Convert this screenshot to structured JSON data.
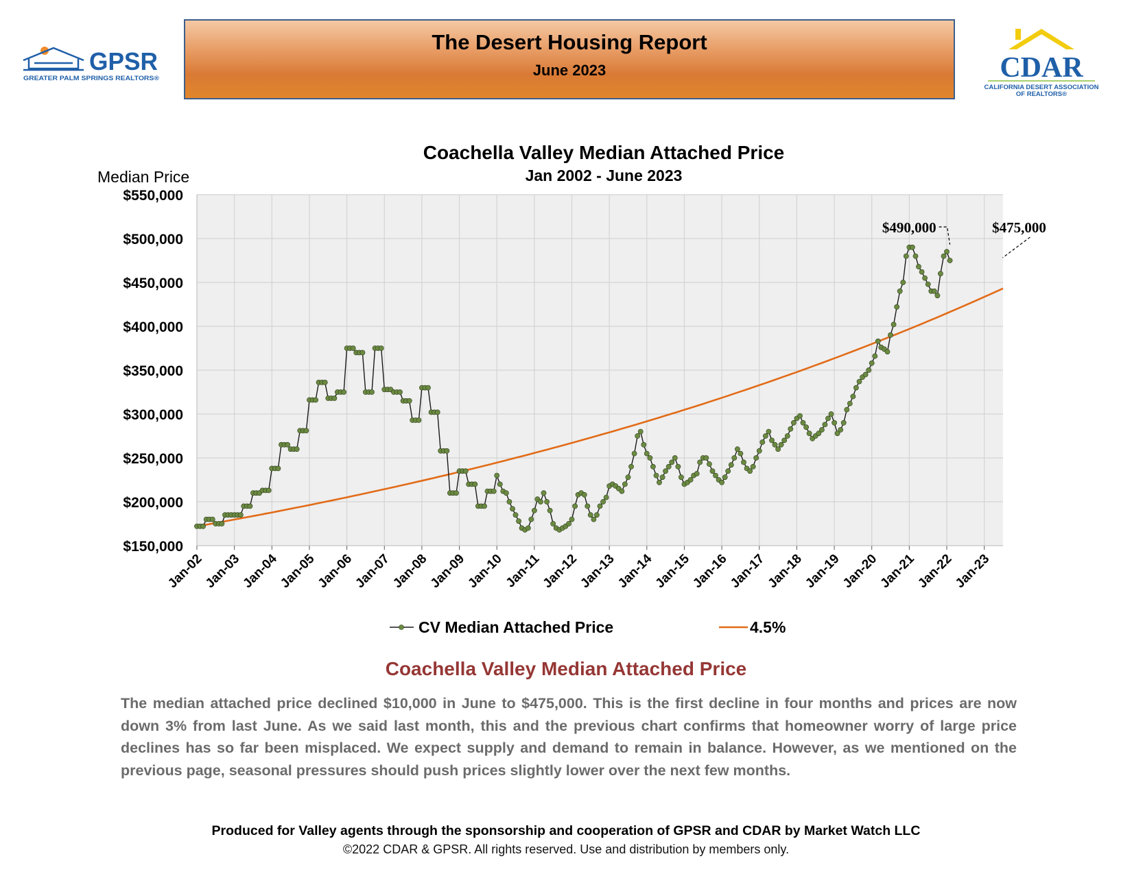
{
  "header": {
    "title": "The Desert Housing Report",
    "subtitle": "June 2023"
  },
  "logos": {
    "gpsr_name": "GPSR",
    "gpsr_tagline": "GREATER PALM SPRINGS REALTORS®",
    "cdar_name": "CDAR",
    "cdar_tagline_1": "CALIFORNIA DESERT ASSOCIATION",
    "cdar_tagline_2": "OF REALTORS®"
  },
  "colors": {
    "trend_line": "#e26b17",
    "series_line": "#1a1a1a",
    "marker": "#6b8a42",
    "plot_bg": "#efefef",
    "section_title": "#953735"
  },
  "chart_data": {
    "type": "line",
    "title": "Coachella Valley Median Attached Price",
    "subtitle": "Jan 2002 - June 2023",
    "ylabel": "Median Price",
    "xlabel": "",
    "ylim": [
      150000,
      550000
    ],
    "yticks": [
      "$150,000",
      "$200,000",
      "$250,000",
      "$300,000",
      "$350,000",
      "$400,000",
      "$450,000",
      "$500,000",
      "$550,000"
    ],
    "xticks": [
      "Jan-02",
      "Jan-03",
      "Jan-04",
      "Jan-05",
      "Jan-06",
      "Jan-07",
      "Jan-08",
      "Jan-09",
      "Jan-10",
      "Jan-11",
      "Jan-12",
      "Jan-13",
      "Jan-14",
      "Jan-15",
      "Jan-16",
      "Jan-17",
      "Jan-18",
      "Jan-19",
      "Jan-20",
      "Jan-21",
      "Jan-22",
      "Jan-23"
    ],
    "grid": true,
    "legend_position": "bottom",
    "x_unit": "months since Jan 2002",
    "series": [
      {
        "name": "CV Median Attached Price",
        "values": [
          172000,
          172000,
          172000,
          180000,
          180000,
          180000,
          175000,
          175000,
          175000,
          185000,
          185000,
          185000,
          185000,
          185000,
          185000,
          195000,
          195000,
          195000,
          210000,
          210000,
          210000,
          213000,
          213000,
          213000,
          238000,
          238000,
          238000,
          265000,
          265000,
          265000,
          260000,
          260000,
          260000,
          281000,
          281000,
          281000,
          316000,
          316000,
          316000,
          336000,
          336000,
          336000,
          318000,
          318000,
          318000,
          325000,
          325000,
          325000,
          375000,
          375000,
          375000,
          370000,
          370000,
          370000,
          325000,
          325000,
          325000,
          375000,
          375000,
          375000,
          328000,
          328000,
          328000,
          325000,
          325000,
          325000,
          315000,
          315000,
          315000,
          293000,
          293000,
          293000,
          330000,
          330000,
          330000,
          302000,
          302000,
          302000,
          258000,
          258000,
          258000,
          210000,
          210000,
          210000,
          235000,
          235000,
          235000,
          220000,
          220000,
          220000,
          195000,
          195000,
          195000,
          212000,
          212000,
          212000,
          230000,
          220000,
          212000,
          210000,
          200000,
          192000,
          185000,
          178000,
          170000,
          168000,
          170000,
          180000,
          190000,
          203000,
          200000,
          210000,
          200000,
          190000,
          175000,
          170000,
          168000,
          170000,
          172000,
          175000,
          180000,
          195000,
          208000,
          210000,
          208000,
          195000,
          185000,
          180000,
          185000,
          195000,
          200000,
          205000,
          218000,
          220000,
          218000,
          215000,
          212000,
          220000,
          228000,
          240000,
          255000,
          275000,
          280000,
          265000,
          255000,
          250000,
          240000,
          230000,
          222000,
          228000,
          235000,
          240000,
          245000,
          250000,
          240000,
          228000,
          220000,
          222000,
          225000,
          230000,
          232000,
          245000,
          250000,
          250000,
          243000,
          235000,
          230000,
          225000,
          222000,
          228000,
          235000,
          242000,
          250000,
          260000,
          255000,
          245000,
          238000,
          235000,
          240000,
          250000,
          258000,
          268000,
          275000,
          280000,
          270000,
          265000,
          260000,
          265000,
          270000,
          275000,
          283000,
          290000,
          295000,
          298000,
          290000,
          285000,
          278000,
          272000,
          275000,
          278000,
          282000,
          288000,
          295000,
          300000,
          290000,
          278000,
          282000,
          290000,
          305000,
          312000,
          320000,
          330000,
          337000,
          342000,
          345000,
          350000,
          358000,
          366000,
          383000,
          376000,
          374000,
          371000,
          390000,
          402000,
          422000,
          440000,
          450000,
          480000,
          490000,
          490000,
          480000,
          468000,
          462000,
          455000,
          448000,
          440000,
          440000,
          435000,
          460000,
          480000,
          485000,
          475000
        ]
      },
      {
        "name": "4.5%",
        "growth_rate_annual": 0.045,
        "start_value": 172000
      }
    ],
    "annotations": [
      {
        "text": "$490,000",
        "month": 241,
        "value": 490000
      },
      {
        "text": "$475,000",
        "month": 257,
        "value": 475000
      }
    ]
  },
  "section_title": "Coachella Valley Median Attached Price",
  "body_text": "The median attached price declined $10,000 in June to $475,000. This is the first decline in four months and prices are now down 3% from last June. As we said last month, this and the previous chart confirms that homeowner worry of large price declines has so far been misplaced. We expect supply and demand to remain in balance. However, as we mentioned on the previous page, seasonal pressures should push prices slightly lower over the next few months.",
  "footer": {
    "main": "Produced for Valley agents through the sponsorship and cooperation of GPSR and CDAR by Market Watch LLC",
    "copyright": "©2022 CDAR & GPSR.  All rights reserved.  Use and distribution by members only."
  }
}
